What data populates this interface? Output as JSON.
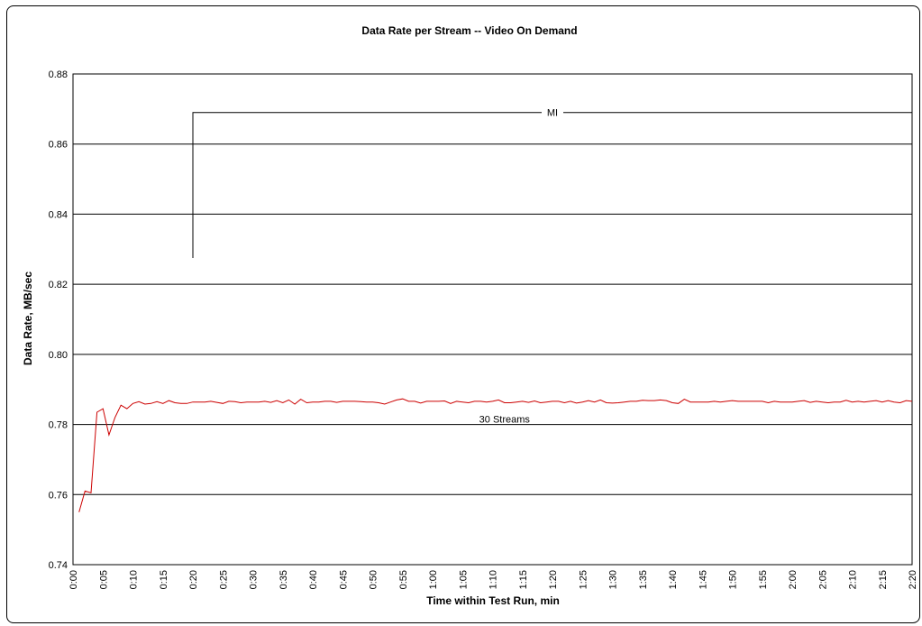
{
  "chart_data": {
    "type": "line",
    "title": "Data Rate per Stream -- Video On Demand",
    "xlabel": "Time within Test Run, min",
    "ylabel": "Data Rate, MB/sec",
    "ylim": [
      0.74,
      0.88
    ],
    "ytick_labels": [
      "0.74",
      "0.76",
      "0.78",
      "0.80",
      "0.82",
      "0.84",
      "0.86",
      "0.88"
    ],
    "xlim_seconds": [
      0,
      140
    ],
    "xtick_labels": [
      "0:00",
      "0:05",
      "0:10",
      "0:15",
      "0:20",
      "0:25",
      "0:30",
      "0:35",
      "0:40",
      "0:45",
      "0:50",
      "0:55",
      "1:00",
      "1:05",
      "1:10",
      "1:15",
      "1:20",
      "1:25",
      "1:30",
      "1:35",
      "1:40",
      "1:45",
      "1:50",
      "1:55",
      "2:00",
      "2:05",
      "2:10",
      "2:15",
      "2:20"
    ],
    "grid": true,
    "series": [
      {
        "color": "#cc0000",
        "x_seconds": [
          1,
          2,
          3,
          4,
          5,
          6,
          7,
          8,
          9,
          10,
          11,
          12,
          13,
          14,
          15,
          16,
          17,
          18,
          19,
          20,
          21,
          22,
          23,
          24,
          25,
          26,
          27,
          28,
          29,
          30,
          31,
          32,
          33,
          34,
          35,
          36,
          37,
          38,
          39,
          40,
          41,
          42,
          43,
          44,
          45,
          46,
          47,
          48,
          49,
          50,
          51,
          52,
          53,
          54,
          55,
          56,
          57,
          58,
          59,
          60,
          61,
          62,
          63,
          64,
          65,
          66,
          67,
          68,
          69,
          70,
          71,
          72,
          73,
          74,
          75,
          76,
          77,
          78,
          79,
          80,
          81,
          82,
          83,
          84,
          85,
          86,
          87,
          88,
          89,
          90,
          91,
          92,
          93,
          94,
          95,
          96,
          97,
          98,
          99,
          100,
          101,
          102,
          103,
          104,
          105,
          106,
          107,
          108,
          109,
          110,
          111,
          112,
          113,
          114,
          115,
          116,
          117,
          118,
          119,
          120,
          121,
          122,
          123,
          124,
          125,
          126,
          127,
          128,
          129,
          130,
          131,
          132,
          133,
          134,
          135,
          136,
          137,
          138,
          139,
          140
        ],
        "values": [
          0.755,
          0.761,
          0.7605,
          0.7835,
          0.7845,
          0.777,
          0.782,
          0.7855,
          0.7845,
          0.786,
          0.7865,
          0.7858,
          0.786,
          0.7865,
          0.786,
          0.7868,
          0.7862,
          0.786,
          0.786,
          0.7864,
          0.7864,
          0.7864,
          0.7866,
          0.7863,
          0.786,
          0.7866,
          0.7865,
          0.7862,
          0.7864,
          0.7864,
          0.7864,
          0.7866,
          0.7863,
          0.7868,
          0.7862,
          0.787,
          0.7858,
          0.7872,
          0.7862,
          0.7864,
          0.7864,
          0.7866,
          0.7866,
          0.7863,
          0.7866,
          0.7866,
          0.7866,
          0.7865,
          0.7864,
          0.7864,
          0.7862,
          0.7858,
          0.7864,
          0.787,
          0.7873,
          0.7866,
          0.7866,
          0.7861,
          0.7866,
          0.7866,
          0.7866,
          0.7867,
          0.786,
          0.7866,
          0.7864,
          0.7862,
          0.7866,
          0.7866,
          0.7864,
          0.7866,
          0.787,
          0.7862,
          0.7862,
          0.7864,
          0.7866,
          0.7863,
          0.7867,
          0.7862,
          0.7864,
          0.7866,
          0.7866,
          0.7862,
          0.7866,
          0.7861,
          0.7864,
          0.7868,
          0.7864,
          0.787,
          0.7862,
          0.7861,
          0.7862,
          0.7864,
          0.7866,
          0.7866,
          0.7869,
          0.7868,
          0.7868,
          0.787,
          0.7868,
          0.7862,
          0.786,
          0.7872,
          0.7864,
          0.7864,
          0.7864,
          0.7864,
          0.7866,
          0.7864,
          0.7866,
          0.7868,
          0.7866,
          0.7866,
          0.7866,
          0.7866,
          0.7866,
          0.7862,
          0.7866,
          0.7864,
          0.7864,
          0.7864,
          0.7866,
          0.7868,
          0.7863,
          0.7866,
          0.7864,
          0.7862,
          0.7864,
          0.7864,
          0.7869,
          0.7864,
          0.7866,
          0.7864,
          0.7866,
          0.7868,
          0.7864,
          0.7868,
          0.7864,
          0.7862,
          0.7868,
          0.7866
        ]
      }
    ],
    "annotations": [
      {
        "text": "MI",
        "x_start_seconds": 20,
        "x_end_seconds": 140,
        "y_bracket": 0.869,
        "y_bottom": 0.8275
      },
      {
        "text": "30 Streams",
        "x_seconds": 72,
        "y": 0.7815
      }
    ]
  }
}
